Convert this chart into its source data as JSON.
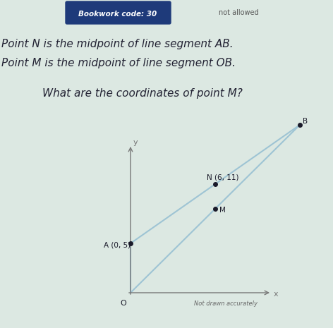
{
  "bookwork_code": "Bookwork code: 30",
  "not_allowed_text": "not allowed",
  "text_line1": "Point N is the midpoint of line segment AB.",
  "text_line2": "Point M is the midpoint of line segment OB.",
  "text_question": "What are the coordinates of point M?",
  "O": [
    0,
    0
  ],
  "A": [
    0,
    5
  ],
  "B": [
    12,
    17
  ],
  "N": [
    6,
    11
  ],
  "M": [
    6,
    8.5
  ],
  "not_drawn_accurately": "Not drawn accurately",
  "bg_color": "#dce8e2",
  "header_bg": "#1e3a7a",
  "header_text_color": "#ffffff",
  "line_color": "#9ec4d4",
  "point_color": "#1a1a2a",
  "label_color": "#222233",
  "axis_color": "#777777",
  "text_color": "#222233"
}
